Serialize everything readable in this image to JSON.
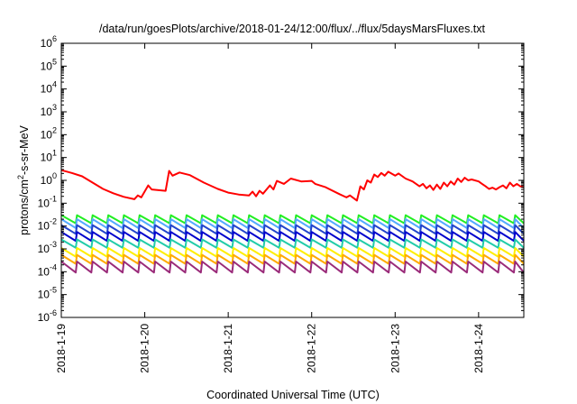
{
  "chart_data": {
    "type": "line",
    "title": "/data/run/goesPlots/archive/2018-01-24/12:00/flux/../flux/5daysMarsFluxes.txt",
    "xlabel": "Coordinated Universal Time (UTC)",
    "ylabel": "protons/cm²-s-sr-MeV",
    "ylabel_parts": {
      "prefix": "protons/cm",
      "sup": "2",
      "suffix": "-s-sr-MeV"
    },
    "yscale": "log",
    "ylim": [
      1e-06,
      1000000.0
    ],
    "yticks": [
      {
        "base": "10",
        "exp": "6",
        "value": 1000000.0
      },
      {
        "base": "10",
        "exp": "5",
        "value": 100000.0
      },
      {
        "base": "10",
        "exp": "4",
        "value": 10000.0
      },
      {
        "base": "10",
        "exp": "3",
        "value": 1000.0
      },
      {
        "base": "10",
        "exp": "2",
        "value": 100.0
      },
      {
        "base": "10",
        "exp": "1",
        "value": 10.0
      },
      {
        "base": "10",
        "exp": "0",
        "value": 1.0
      },
      {
        "base": "10",
        "exp": "-1",
        "value": 0.1
      },
      {
        "base": "10",
        "exp": "-2",
        "value": 0.01
      },
      {
        "base": "10",
        "exp": "-3",
        "value": 0.001
      },
      {
        "base": "10",
        "exp": "-4",
        "value": 0.0001
      },
      {
        "base": "10",
        "exp": "-5",
        "value": 1e-05
      },
      {
        "base": "10",
        "exp": "-6",
        "value": 1e-06
      }
    ],
    "xlim": [
      "2018-01-19T00:00",
      "2018-01-24T13:00"
    ],
    "xticks": [
      {
        "label": "2018-1-19",
        "date": "2018-01-19T00:00"
      },
      {
        "label": "2018-1-20",
        "date": "2018-01-20T00:00"
      },
      {
        "label": "2018-1-21",
        "date": "2018-01-21T00:00"
      },
      {
        "label": "2018-1-22",
        "date": "2018-01-22T00:00"
      },
      {
        "label": "2018-1-23",
        "date": "2018-01-23T00:00"
      },
      {
        "label": "2018-1-24",
        "date": "2018-01-24T00:00"
      }
    ],
    "grid": false,
    "legend": "none",
    "series": [
      {
        "color": "#ff0000",
        "points": [
          [
            "2018-01-19T00:00",
            2.8
          ],
          [
            "2018-01-19T03:00",
            2.1
          ],
          [
            "2018-01-19T06:00",
            1.5
          ],
          [
            "2018-01-19T09:00",
            0.8
          ],
          [
            "2018-01-19T12:00",
            0.42
          ],
          [
            "2018-01-19T15:00",
            0.27
          ],
          [
            "2018-01-19T18:00",
            0.19
          ],
          [
            "2018-01-19T21:00",
            0.15
          ],
          [
            "2018-01-19T22:00",
            0.22
          ],
          [
            "2018-01-19T23:00",
            0.18
          ],
          [
            "2018-01-20T01:00",
            0.6
          ],
          [
            "2018-01-20T02:00",
            0.4
          ],
          [
            "2018-01-20T06:00",
            0.35
          ],
          [
            "2018-01-20T07:00",
            2.6
          ],
          [
            "2018-01-20T08:00",
            1.6
          ],
          [
            "2018-01-20T10:00",
            2.2
          ],
          [
            "2018-01-20T13:00",
            1.7
          ],
          [
            "2018-01-20T17:00",
            0.8
          ],
          [
            "2018-01-20T21:00",
            0.42
          ],
          [
            "2018-01-21T00:00",
            0.29
          ],
          [
            "2018-01-21T03:00",
            0.24
          ],
          [
            "2018-01-21T06:00",
            0.22
          ],
          [
            "2018-01-21T07:00",
            0.32
          ],
          [
            "2018-01-21T08:00",
            0.2
          ],
          [
            "2018-01-21T09:00",
            0.35
          ],
          [
            "2018-01-21T10:00",
            0.26
          ],
          [
            "2018-01-21T12:00",
            0.6
          ],
          [
            "2018-01-21T13:00",
            0.4
          ],
          [
            "2018-01-21T14:00",
            0.95
          ],
          [
            "2018-01-21T16:00",
            0.7
          ],
          [
            "2018-01-21T18:00",
            1.2
          ],
          [
            "2018-01-21T21:00",
            0.9
          ],
          [
            "2018-01-22T00:00",
            0.95
          ],
          [
            "2018-01-22T01:00",
            0.7
          ],
          [
            "2018-01-22T04:00",
            0.5
          ],
          [
            "2018-01-22T08:00",
            0.25
          ],
          [
            "2018-01-22T10:00",
            0.18
          ],
          [
            "2018-01-22T11:00",
            0.22
          ],
          [
            "2018-01-22T13:00",
            0.13
          ],
          [
            "2018-01-22T14:00",
            0.55
          ],
          [
            "2018-01-22T15:00",
            0.4
          ],
          [
            "2018-01-22T16:00",
            1.0
          ],
          [
            "2018-01-22T17:00",
            0.8
          ],
          [
            "2018-01-22T18:00",
            1.8
          ],
          [
            "2018-01-22T19:00",
            1.4
          ],
          [
            "2018-01-22T20:00",
            2.1
          ],
          [
            "2018-01-22T21:00",
            1.6
          ],
          [
            "2018-01-22T22:00",
            2.4
          ],
          [
            "2018-01-23T00:00",
            1.6
          ],
          [
            "2018-01-23T01:00",
            2.0
          ],
          [
            "2018-01-23T03:00",
            1.2
          ],
          [
            "2018-01-23T05:00",
            0.9
          ],
          [
            "2018-01-23T07:00",
            0.55
          ],
          [
            "2018-01-23T08:00",
            0.7
          ],
          [
            "2018-01-23T09:00",
            0.45
          ],
          [
            "2018-01-23T10:00",
            0.6
          ],
          [
            "2018-01-23T11:00",
            0.38
          ],
          [
            "2018-01-23T12:00",
            0.65
          ],
          [
            "2018-01-23T13:00",
            0.42
          ],
          [
            "2018-01-23T14:00",
            0.8
          ],
          [
            "2018-01-23T15:00",
            0.55
          ],
          [
            "2018-01-23T16:00",
            0.9
          ],
          [
            "2018-01-23T17:00",
            0.65
          ],
          [
            "2018-01-23T18:00",
            1.2
          ],
          [
            "2018-01-23T19:00",
            0.85
          ],
          [
            "2018-01-23T20:00",
            1.3
          ],
          [
            "2018-01-23T21:00",
            1.0
          ],
          [
            "2018-01-23T22:00",
            1.1
          ],
          [
            "2018-01-24T00:00",
            0.9
          ],
          [
            "2018-01-24T01:00",
            0.7
          ],
          [
            "2018-01-24T02:00",
            0.55
          ],
          [
            "2018-01-24T03:00",
            0.42
          ],
          [
            "2018-01-24T04:00",
            0.48
          ],
          [
            "2018-01-24T05:00",
            0.4
          ],
          [
            "2018-01-24T06:00",
            0.5
          ],
          [
            "2018-01-24T07:00",
            0.6
          ],
          [
            "2018-01-24T08:00",
            0.45
          ],
          [
            "2018-01-24T09:00",
            0.8
          ],
          [
            "2018-01-24T10:00",
            0.55
          ],
          [
            "2018-01-24T11:00",
            0.7
          ],
          [
            "2018-01-24T12:00",
            0.55
          ],
          [
            "2018-01-24T13:00",
            0.5
          ]
        ]
      },
      {
        "color": "#22ee22",
        "pattern": "sawtooth",
        "period_hours": 4.5,
        "high": 0.03,
        "low": 0.013
      },
      {
        "color": "#55aaff",
        "pattern": "sawtooth",
        "period_hours": 4.5,
        "high": 0.02,
        "low": 0.008
      },
      {
        "color": "#2244cc",
        "pattern": "sawtooth",
        "period_hours": 4.5,
        "high": 0.011,
        "low": 0.0045
      },
      {
        "color": "#0000cc",
        "pattern": "sawtooth",
        "period_hours": 4.5,
        "high": 0.0055,
        "low": 0.0022
      },
      {
        "color": "#22ccaa",
        "pattern": "sawtooth",
        "period_hours": 4.5,
        "high": 0.0026,
        "low": 0.0011
      },
      {
        "color": "#ffee00",
        "pattern": "sawtooth",
        "period_hours": 4.5,
        "high": 0.0011,
        "low": 0.00045
      },
      {
        "color": "#ffaa00",
        "pattern": "sawtooth",
        "period_hours": 4.5,
        "high": 0.00055,
        "low": 0.00022
      },
      {
        "color": "#9a2b7a",
        "pattern": "sawtooth",
        "period_hours": 4.5,
        "high": 0.00028,
        "low": 9e-05
      }
    ]
  }
}
